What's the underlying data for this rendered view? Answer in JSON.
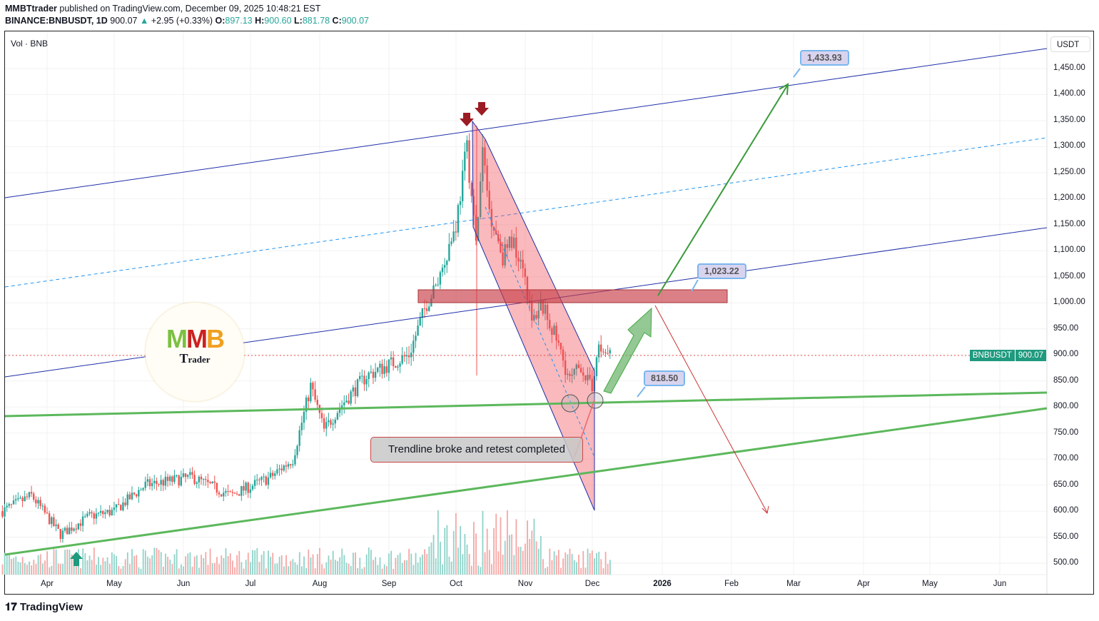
{
  "header": {
    "author": "MMBTtrader",
    "published": " published on TradingView.com, December 09, 2025 10:48:21 EST",
    "symbol": "BINANCE:BNBUSDT, 1D",
    "last": "900.07",
    "change": "+2.95 (+0.33%)",
    "o": "897.13",
    "h": "900.60",
    "l": "881.78",
    "c": "900.07"
  },
  "volume_label": "Vol · BNB",
  "currency": "USDT",
  "price_tag": {
    "symbol": "BNBUSDT",
    "value": "900.07"
  },
  "labels": {
    "target_high": "1,433.93",
    "target_mid": "1,023.22",
    "support": "818.50",
    "note": "Trendline broke and retest completed"
  },
  "logo": {
    "text": "MMB",
    "sub": "Trader"
  },
  "brand": "TradingView",
  "colors": {
    "up": "#26a69a",
    "down": "#ef5350",
    "trend": "#1f2fa8",
    "support": "#5cb85c"
  },
  "chart_data": {
    "type": "candlestick",
    "ylim": [
      480,
      1480
    ],
    "y_ticks": [
      "1,450.00",
      "1,400.00",
      "1,350.00",
      "1,300.00",
      "1,250.00",
      "1,200.00",
      "1,150.00",
      "1,100.00",
      "1,050.00",
      "1,000.00",
      "950.00",
      "900.00",
      "850.00",
      "800.00",
      "750.00",
      "700.00",
      "650.00",
      "600.00",
      "550.00",
      "500.00"
    ],
    "x_ticks": [
      "Apr",
      "May",
      "Jun",
      "Jul",
      "Aug",
      "Sep",
      "Oct",
      "Nov",
      "Dec",
      "2026",
      "Feb",
      "Mar",
      "Apr",
      "May",
      "Jun"
    ],
    "approx_closes": [
      [
        "2025-03-12",
        600
      ],
      [
        "2025-03-25",
        630
      ],
      [
        "2025-04-07",
        555
      ],
      [
        "2025-04-20",
        590
      ],
      [
        "2025-05-01",
        600
      ],
      [
        "2025-05-15",
        650
      ],
      [
        "2025-06-05",
        665
      ],
      [
        "2025-06-22",
        630
      ],
      [
        "2025-07-10",
        665
      ],
      [
        "2025-07-20",
        700
      ],
      [
        "2025-07-28",
        840
      ],
      [
        "2025-08-03",
        755
      ],
      [
        "2025-08-10",
        800
      ],
      [
        "2025-08-22",
        860
      ],
      [
        "2025-09-10",
        900
      ],
      [
        "2025-09-18",
        1000
      ],
      [
        "2025-09-22",
        1030
      ],
      [
        "2025-10-01",
        1150
      ],
      [
        "2025-10-06",
        1300
      ],
      [
        "2025-10-10",
        1110
      ],
      [
        "2025-10-13",
        1290
      ],
      [
        "2025-10-16",
        1180
      ],
      [
        "2025-10-22",
        1090
      ],
      [
        "2025-10-26",
        1120
      ],
      [
        "2025-10-31",
        1080
      ],
      [
        "2025-11-04",
        960
      ],
      [
        "2025-11-08",
        1000
      ],
      [
        "2025-11-15",
        930
      ],
      [
        "2025-11-21",
        850
      ],
      [
        "2025-11-26",
        880
      ],
      [
        "2025-12-01",
        830
      ],
      [
        "2025-12-03",
        910
      ],
      [
        "2025-12-09",
        900
      ]
    ]
  }
}
